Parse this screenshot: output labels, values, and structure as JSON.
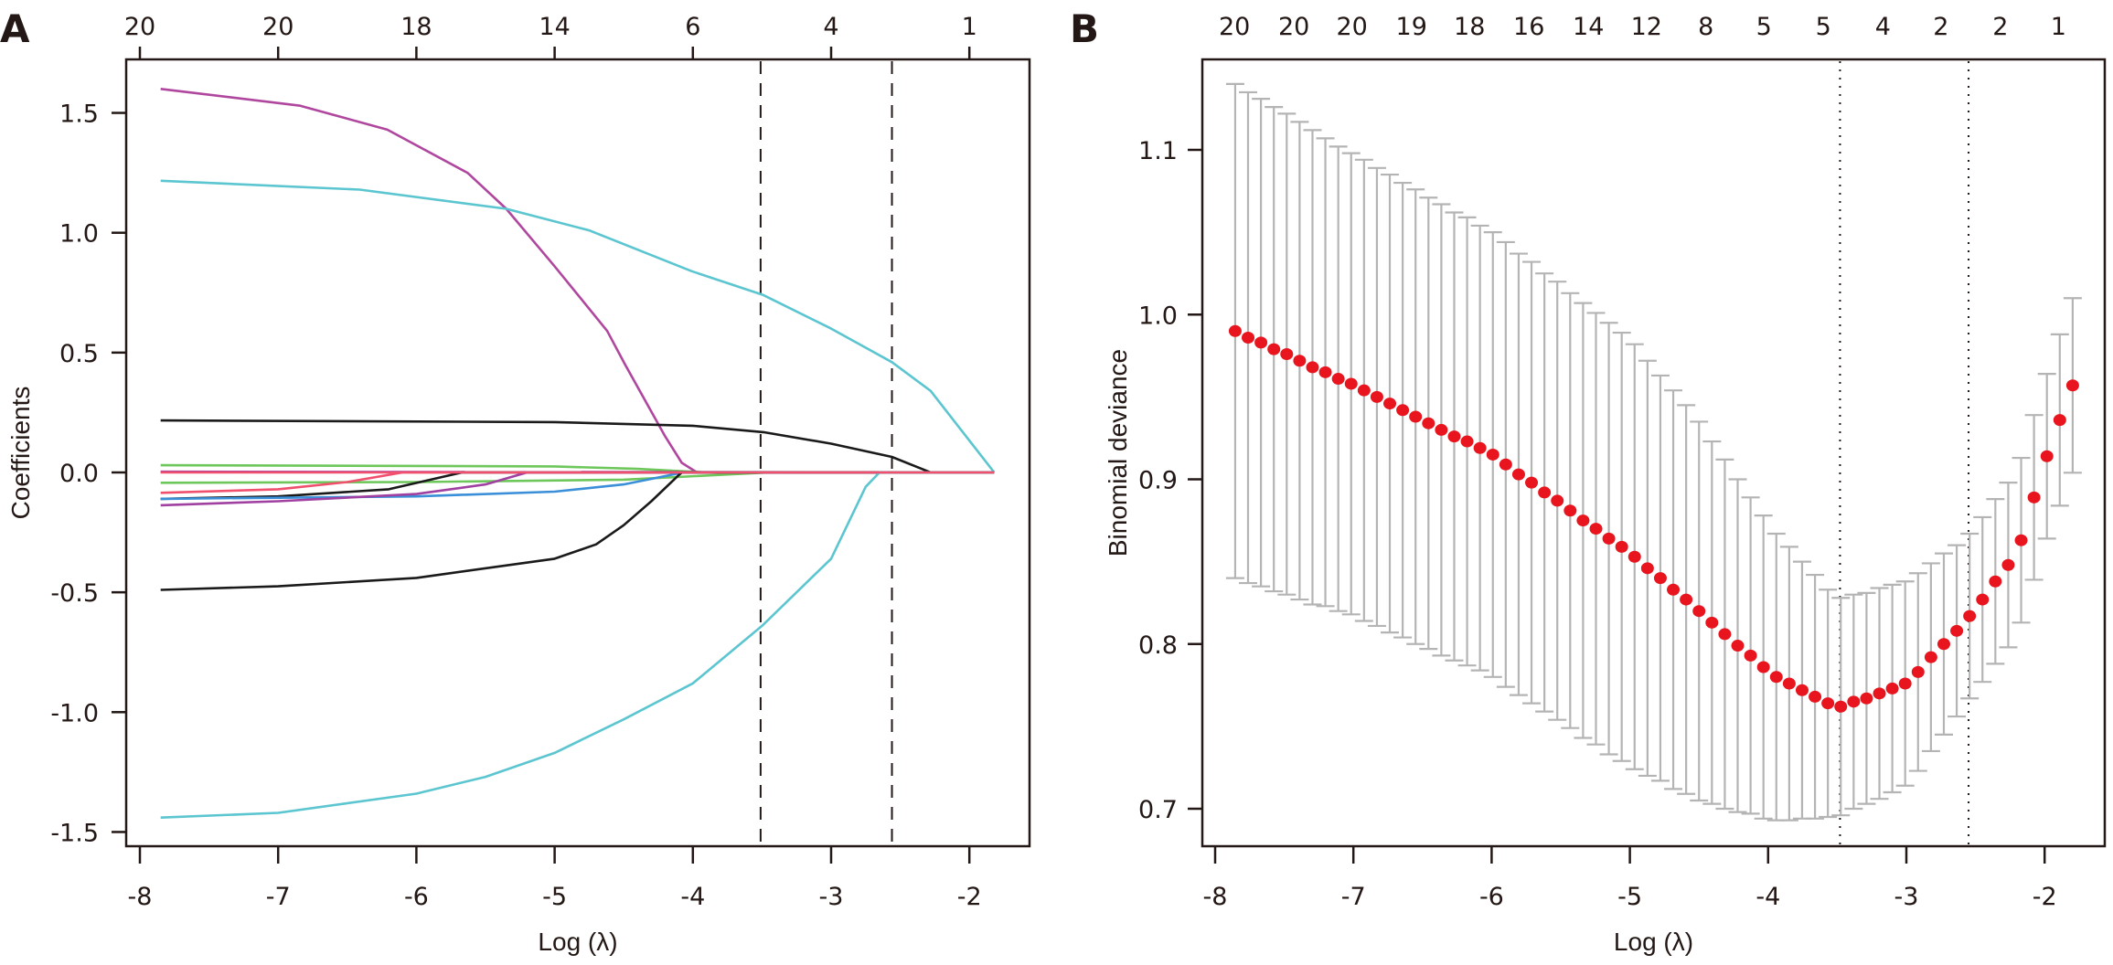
{
  "chart_data": [
    {
      "type": "line",
      "panel_label": "A",
      "xlabel": "Log (λ)",
      "ylabel": "Coefficients",
      "xlim": [
        -8.1,
        -1.65
      ],
      "ylim": [
        -1.55,
        1.72
      ],
      "x_ticks": [
        -8,
        -7,
        -6,
        -5,
        -4,
        -3,
        -2
      ],
      "x_tick_labels": [
        "-8",
        "-7",
        "-6",
        "-5",
        "-4",
        "-3",
        "-2"
      ],
      "y_ticks": [
        1.5,
        1.0,
        0.5,
        0.0,
        -0.5,
        -1.0,
        -1.5
      ],
      "y_tick_labels": [
        "1.5",
        "1.0",
        "0.5",
        "0.0",
        "-0.5",
        "-1.0",
        "-1.5"
      ],
      "top_axis": {
        "at": [
          -8,
          -7,
          -6,
          -5,
          -4,
          -3,
          -2
        ],
        "labels": [
          "20",
          "20",
          "18",
          "14",
          "6",
          "4",
          "1"
        ]
      },
      "reference_lines": {
        "style": "dashed",
        "x": [
          -3.51,
          -2.56
        ]
      },
      "grid": false,
      "series": [
        {
          "color": "#B0479F",
          "points": [
            [
              -7.85,
              1.6
            ],
            [
              -6.84,
              1.53
            ],
            [
              -6.21,
              1.43
            ],
            [
              -5.63,
              1.25
            ],
            [
              -5.35,
              1.1
            ],
            [
              -5.0,
              0.86
            ],
            [
              -4.62,
              0.59
            ],
            [
              -4.49,
              0.45
            ],
            [
              -4.2,
              0.15
            ],
            [
              -4.08,
              0.04
            ],
            [
              -3.97,
              0
            ],
            [
              -1.82,
              0
            ]
          ]
        },
        {
          "color": "#5BC5D0",
          "points": [
            [
              -7.85,
              1.217
            ],
            [
              -6.41,
              1.18
            ],
            [
              -5.35,
              1.1
            ],
            [
              -4.75,
              1.01
            ],
            [
              -4.01,
              0.84
            ],
            [
              -3.49,
              0.74
            ],
            [
              -3.0,
              0.6
            ],
            [
              -2.56,
              0.46
            ],
            [
              -2.28,
              0.34
            ],
            [
              -1.82,
              0
            ]
          ]
        },
        {
          "color": "#1A1A1A",
          "points": [
            [
              -7.85,
              0.217
            ],
            [
              -5.0,
              0.21
            ],
            [
              -4.0,
              0.195
            ],
            [
              -3.49,
              0.168
            ],
            [
              -3.0,
              0.12
            ],
            [
              -2.56,
              0.065
            ],
            [
              -2.28,
              0
            ],
            [
              -1.82,
              0
            ]
          ]
        },
        {
          "color": "#6DC75A",
          "points": [
            [
              -7.85,
              0.03
            ],
            [
              -5.0,
              0.025
            ],
            [
              -4.4,
              0.015
            ],
            [
              -3.9,
              0
            ],
            [
              -1.82,
              0
            ]
          ]
        },
        {
          "color": "#A040A0",
          "points": [
            [
              -7.85,
              0.003
            ],
            [
              -1.82,
              0.0
            ]
          ]
        },
        {
          "color": "#6DC75A",
          "points": [
            [
              -7.85,
              -0.043
            ],
            [
              -6.0,
              -0.04
            ],
            [
              -4.5,
              -0.03
            ],
            [
              -3.45,
              0
            ],
            [
              -1.82,
              0
            ]
          ]
        },
        {
          "color": "#F0506E",
          "points": [
            [
              -7.85,
              -0.085
            ],
            [
              -7.0,
              -0.07
            ],
            [
              -6.5,
              -0.04
            ],
            [
              -6.1,
              0
            ],
            [
              -1.82,
              0
            ]
          ]
        },
        {
          "color": "#1A1A1A",
          "points": [
            [
              -7.85,
              -0.11
            ],
            [
              -7.0,
              -0.1
            ],
            [
              -6.2,
              -0.07
            ],
            [
              -5.67,
              0
            ],
            [
              -1.82,
              0
            ]
          ]
        },
        {
          "color": "#3A8FD8",
          "points": [
            [
              -7.85,
              -0.11
            ],
            [
              -6.0,
              -0.1
            ],
            [
              -5.0,
              -0.08
            ],
            [
              -4.5,
              -0.05
            ],
            [
              -4.07,
              0
            ],
            [
              -1.82,
              0
            ]
          ]
        },
        {
          "color": "#A040A0",
          "points": [
            [
              -7.85,
              -0.137
            ],
            [
              -7.0,
              -0.12
            ],
            [
              -6.0,
              -0.09
            ],
            [
              -5.5,
              -0.05
            ],
            [
              -5.2,
              0
            ],
            [
              -1.82,
              0
            ]
          ]
        },
        {
          "color": "#1A1A1A",
          "points": [
            [
              -7.85,
              -0.49
            ],
            [
              -7.0,
              -0.475
            ],
            [
              -6.0,
              -0.44
            ],
            [
              -5.0,
              -0.36
            ],
            [
              -4.7,
              -0.3
            ],
            [
              -4.5,
              -0.22
            ],
            [
              -4.3,
              -0.12
            ],
            [
              -4.1,
              -0.01
            ],
            [
              -4.08,
              0
            ],
            [
              -1.82,
              0
            ]
          ]
        },
        {
          "color": "#5BC5D0",
          "points": [
            [
              -7.85,
              -1.44
            ],
            [
              -7.0,
              -1.42
            ],
            [
              -6.0,
              -1.34
            ],
            [
              -5.5,
              -1.27
            ],
            [
              -5.0,
              -1.17
            ],
            [
              -4.5,
              -1.03
            ],
            [
              -4.0,
              -0.88
            ],
            [
              -3.5,
              -0.64
            ],
            [
              -3.0,
              -0.36
            ],
            [
              -2.75,
              -0.06
            ],
            [
              -2.65,
              0
            ],
            [
              -1.82,
              0
            ]
          ]
        },
        {
          "color": "#F0506E",
          "points": [
            [
              -7.85,
              0.0
            ],
            [
              -1.82,
              0.0
            ]
          ]
        }
      ]
    },
    {
      "type": "scatter",
      "panel_label": "B",
      "xlabel": "Log (λ)",
      "ylabel": "Binomial deviance",
      "xlim": [
        -8.1,
        -1.65
      ],
      "ylim": [
        0.666,
        1.178
      ],
      "x_ticks": [
        -8,
        -7,
        -6,
        -5,
        -4,
        -3,
        -2
      ],
      "x_tick_labels": [
        "-8",
        "-7",
        "-6",
        "-5",
        "-4",
        "-3",
        "-2"
      ],
      "y_ticks": [
        1.1,
        1.0,
        0.9,
        0.8,
        0.7
      ],
      "y_tick_labels": [
        "1.1",
        "1.0",
        "0.9",
        "0.8",
        "0.7"
      ],
      "top_axis": {
        "at": [
          -7.86,
          -7.43,
          -7.01,
          -6.58,
          -6.16,
          -5.73,
          -5.3,
          -4.88,
          -4.45,
          -4.03,
          -3.6,
          -3.17,
          -2.75,
          -2.32,
          -1.9
        ],
        "labels": [
          "20",
          "20",
          "20",
          "19",
          "18",
          "16",
          "14",
          "12",
          "8",
          "5",
          "5",
          "4",
          "2",
          "2",
          "1"
        ]
      },
      "reference_lines": {
        "style": "dotted",
        "x": [
          -3.48,
          -2.55
        ]
      },
      "grid": false,
      "point_color": "#E8141E",
      "errorbar_color": "#B4B4B4",
      "x_start": -7.855,
      "x_step": 0.0932,
      "mean": [
        0.99,
        0.986,
        0.983,
        0.979,
        0.976,
        0.972,
        0.968,
        0.965,
        0.961,
        0.958,
        0.954,
        0.95,
        0.946,
        0.942,
        0.938,
        0.934,
        0.93,
        0.926,
        0.923,
        0.919,
        0.915,
        0.909,
        0.903,
        0.898,
        0.892,
        0.887,
        0.881,
        0.875,
        0.87,
        0.864,
        0.859,
        0.853,
        0.846,
        0.84,
        0.833,
        0.827,
        0.82,
        0.813,
        0.806,
        0.799,
        0.793,
        0.786,
        0.78,
        0.776,
        0.772,
        0.768,
        0.764,
        0.762,
        0.765,
        0.767,
        0.77,
        0.773,
        0.776,
        0.783,
        0.792,
        0.8,
        0.808,
        0.817,
        0.827,
        0.838,
        0.848,
        0.863,
        0.889,
        0.914,
        0.936,
        0.957
      ],
      "error": [
        0.15,
        0.149,
        0.148,
        0.147,
        0.146,
        0.145,
        0.144,
        0.142,
        0.141,
        0.14,
        0.14,
        0.139,
        0.139,
        0.138,
        0.138,
        0.137,
        0.137,
        0.136,
        0.136,
        0.135,
        0.135,
        0.135,
        0.134,
        0.134,
        0.133,
        0.133,
        0.132,
        0.132,
        0.131,
        0.131,
        0.13,
        0.129,
        0.126,
        0.123,
        0.121,
        0.118,
        0.115,
        0.11,
        0.106,
        0.101,
        0.096,
        0.092,
        0.087,
        0.083,
        0.078,
        0.074,
        0.069,
        0.066,
        0.065,
        0.064,
        0.064,
        0.063,
        0.062,
        0.06,
        0.057,
        0.055,
        0.052,
        0.05,
        0.05,
        0.05,
        0.05,
        0.05,
        0.05,
        0.05,
        0.052,
        0.053
      ]
    }
  ]
}
